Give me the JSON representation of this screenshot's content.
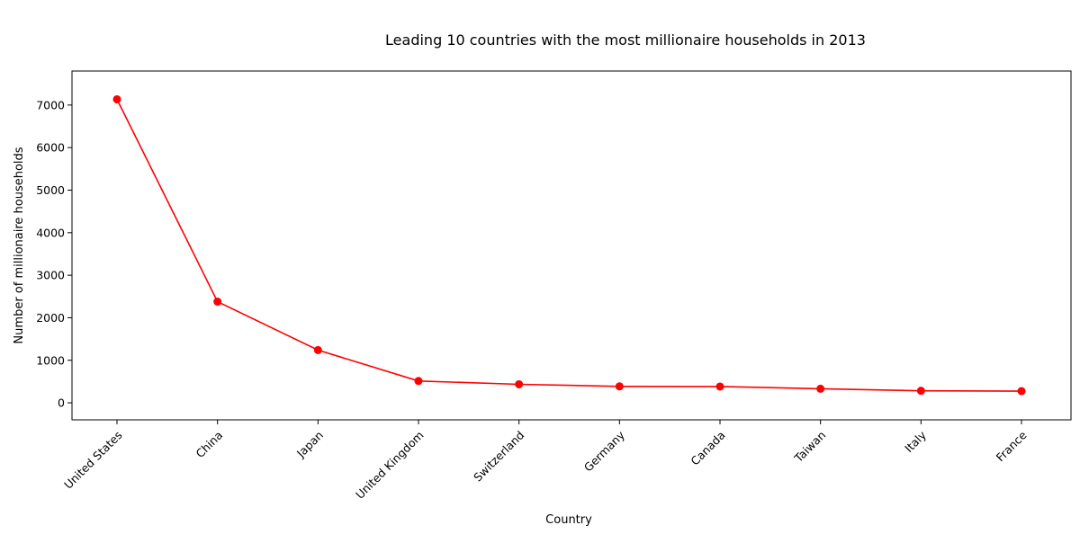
{
  "chart_data": {
    "type": "line",
    "title": "Leading 10 countries with the most millionaire households in 2013",
    "xlabel": "Country",
    "ylabel": "Number of millionaire households",
    "categories": [
      "United States",
      "China",
      "Japan",
      "United Kingdom",
      "Switzerland",
      "Germany",
      "Canada",
      "Taiwan",
      "Italy",
      "France"
    ],
    "series": [
      {
        "values": [
          7135,
          2378,
          1240,
          513,
          435,
          386,
          383,
          331,
          283,
          275
        ],
        "color": "#ff0000",
        "marker": "circle"
      }
    ],
    "ylim": [
      -400,
      7800
    ],
    "yticks": [
      0,
      1000,
      2000,
      3000,
      4000,
      5000,
      6000,
      7000
    ],
    "grid": false,
    "legend": "none"
  }
}
